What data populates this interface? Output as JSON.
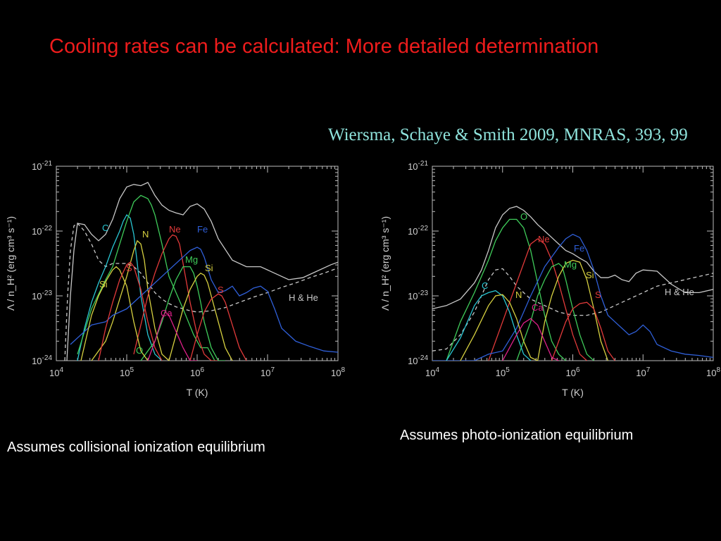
{
  "title": "Cooling rates can be calculated: More detailed determination",
  "citation": "Wiersma, Schaye & Smith 2009, MNRAS, 393, 99",
  "captions": {
    "left": "Assumes collisional ionization equilibrium",
    "right": "Assumes photo-ionization equilibrium"
  },
  "colors": {
    "total": "#c8c8c8",
    "hhe": "#c8c8c8",
    "O": "#3fcb5a",
    "C": "#29c6d3",
    "N": "#d6d040",
    "Ne": "#e23a3a",
    "Fe": "#2f5fd8",
    "Mg": "#3fcb5a",
    "Si": "#d6d040",
    "S": "#e23a3a",
    "Ca": "#e0208a"
  },
  "chart_data": [
    {
      "type": "line",
      "xlabel": "T (K)",
      "ylabel": "Λ / n_H² (erg cm³ s⁻¹)",
      "xscale": "log",
      "yscale": "log",
      "xlim": [
        10000,
        100000000
      ],
      "ylim": [
        1e-24,
        1e-21
      ],
      "xticks": [
        "10^4",
        "10^5",
        "10^6",
        "10^7",
        "10^8"
      ],
      "yticks": [
        "10^-24",
        "10^-23",
        "10^-22",
        "10^-21"
      ],
      "curve_labels": [
        "O",
        "C",
        "N",
        "Ne",
        "Fe",
        "Mg",
        "Si",
        "Si",
        "S",
        "S",
        "Ca",
        "H & He"
      ],
      "series": [
        {
          "key": "total",
          "style": "solid",
          "logT": [
            4.15,
            4.2,
            4.25,
            4.3,
            4.4,
            4.5,
            4.6,
            4.7,
            4.8,
            4.9,
            5.0,
            5.1,
            5.2,
            5.3,
            5.4,
            5.5,
            5.6,
            5.7,
            5.8,
            5.9,
            6.0,
            6.1,
            6.2,
            6.3,
            6.5,
            6.7,
            6.9,
            7.1,
            7.3,
            7.5,
            7.7,
            7.9,
            8.0
          ],
          "logL": [
            -24.0,
            -23.0,
            -22.3,
            -21.88,
            -21.9,
            -22.05,
            -22.15,
            -22.05,
            -21.82,
            -21.5,
            -21.32,
            -21.28,
            -21.3,
            -21.25,
            -21.45,
            -21.6,
            -21.68,
            -21.72,
            -21.75,
            -21.62,
            -21.58,
            -21.66,
            -21.85,
            -22.12,
            -22.45,
            -22.55,
            -22.55,
            -22.65,
            -22.75,
            -22.72,
            -22.62,
            -22.52,
            -22.48
          ]
        },
        {
          "key": "hhe",
          "style": "dashed",
          "logT": [
            4.12,
            4.16,
            4.2,
            4.25,
            4.3,
            4.4,
            4.5,
            4.6,
            4.7,
            4.8,
            4.9,
            5.0,
            5.1,
            5.2,
            5.3,
            5.4,
            5.5,
            5.6,
            5.7,
            5.8,
            5.9,
            6.0,
            6.2,
            6.4,
            6.6,
            6.8,
            7.0,
            7.2,
            7.4,
            7.6,
            7.8,
            8.0
          ],
          "logL": [
            -24.0,
            -23.0,
            -22.3,
            -21.92,
            -21.88,
            -22.0,
            -22.2,
            -22.45,
            -22.55,
            -22.5,
            -22.5,
            -22.5,
            -22.55,
            -22.65,
            -22.8,
            -22.95,
            -23.05,
            -23.12,
            -23.17,
            -23.2,
            -23.23,
            -23.25,
            -23.23,
            -23.18,
            -23.1,
            -23.02,
            -22.95,
            -22.87,
            -22.8,
            -22.72,
            -22.65,
            -22.57
          ]
        },
        {
          "key": "C",
          "style": "solid",
          "logT": [
            4.3,
            4.4,
            4.5,
            4.6,
            4.7,
            4.8,
            4.9,
            4.95,
            5.0,
            5.05,
            5.1,
            5.15,
            5.2,
            5.3,
            5.4,
            5.5
          ],
          "logL": [
            -24.0,
            -23.5,
            -23.1,
            -22.8,
            -22.55,
            -22.25,
            -22.0,
            -21.85,
            -21.75,
            -21.8,
            -22.05,
            -22.5,
            -23.0,
            -23.6,
            -23.9,
            -24.0
          ]
        },
        {
          "key": "O",
          "style": "solid",
          "logT": [
            4.3,
            4.5,
            4.7,
            4.8,
            4.9,
            5.0,
            5.1,
            5.2,
            5.3,
            5.35,
            5.4,
            5.5,
            5.6,
            5.8,
            5.95,
            6.05,
            6.15,
            6.25
          ],
          "logL": [
            -23.9,
            -23.2,
            -22.75,
            -22.55,
            -22.2,
            -21.85,
            -21.55,
            -21.45,
            -21.5,
            -21.6,
            -21.75,
            -22.2,
            -22.7,
            -23.2,
            -23.6,
            -23.8,
            -23.8,
            -24.0
          ]
        },
        {
          "key": "N",
          "style": "solid",
          "logT": [
            4.5,
            4.7,
            4.8,
            4.9,
            5.0,
            5.1,
            5.15,
            5.2,
            5.25,
            5.3,
            5.4,
            5.5,
            5.6
          ],
          "logL": [
            -24.0,
            -23.7,
            -23.4,
            -23.05,
            -22.7,
            -22.3,
            -22.15,
            -22.2,
            -22.45,
            -22.9,
            -23.5,
            -23.9,
            -24.0
          ]
        },
        {
          "key": "Ne",
          "style": "solid",
          "logT": [
            5.1,
            5.2,
            5.3,
            5.4,
            5.5,
            5.6,
            5.65,
            5.7,
            5.75,
            5.8,
            5.9,
            6.0,
            6.1,
            6.2,
            6.3
          ],
          "logL": [
            -23.9,
            -23.45,
            -23.0,
            -22.65,
            -22.35,
            -22.12,
            -22.06,
            -22.08,
            -22.2,
            -22.5,
            -23.1,
            -23.6,
            -23.9,
            -24.0,
            -24.0
          ]
        },
        {
          "key": "Fe",
          "style": "solid",
          "logT": [
            4.2,
            4.5,
            4.7,
            4.8,
            5.0,
            5.2,
            5.4,
            5.6,
            5.8,
            5.9,
            6.0,
            6.05,
            6.1,
            6.2,
            6.3,
            6.4,
            6.5,
            6.6,
            6.7,
            6.8,
            6.9,
            7.0,
            7.1,
            7.2,
            7.4,
            7.6,
            7.8,
            8.0
          ],
          "logL": [
            -23.75,
            -23.45,
            -23.4,
            -23.3,
            -23.2,
            -23.0,
            -22.8,
            -22.6,
            -22.4,
            -22.3,
            -22.25,
            -22.28,
            -22.4,
            -22.75,
            -22.95,
            -22.92,
            -22.85,
            -23.0,
            -22.95,
            -22.88,
            -22.85,
            -22.93,
            -23.2,
            -23.5,
            -23.7,
            -23.78,
            -23.85,
            -23.87
          ]
        },
        {
          "key": "Mg",
          "style": "solid",
          "logT": [
            5.2,
            5.4,
            5.5,
            5.6,
            5.7,
            5.8,
            5.9,
            5.95,
            6.0,
            6.05,
            6.1,
            6.2,
            6.3,
            6.4
          ],
          "logL": [
            -24.0,
            -23.7,
            -23.4,
            -23.05,
            -22.75,
            -22.55,
            -22.55,
            -22.65,
            -22.85,
            -23.1,
            -23.4,
            -23.8,
            -24.0,
            -24.0
          ]
        },
        {
          "key": "Si",
          "style": "solid",
          "logT": [
            4.35,
            4.5,
            4.6,
            4.7,
            4.8,
            4.85,
            4.9,
            5.0,
            5.1,
            5.2,
            5.3
          ],
          "logL": [
            -24.0,
            -23.3,
            -23.0,
            -22.78,
            -22.6,
            -22.55,
            -22.6,
            -22.85,
            -23.4,
            -23.85,
            -24.0
          ]
        },
        {
          "key": "Si",
          "style": "solid",
          "logT": [
            5.6,
            5.7,
            5.8,
            5.9,
            6.0,
            6.05,
            6.1,
            6.15,
            6.2,
            6.3,
            6.4,
            6.5
          ],
          "logL": [
            -24.0,
            -23.6,
            -23.2,
            -22.9,
            -22.7,
            -22.65,
            -22.68,
            -22.8,
            -23.0,
            -23.4,
            -23.8,
            -24.0
          ]
        },
        {
          "key": "S",
          "style": "solid",
          "logT": [
            4.6,
            4.7,
            4.8,
            4.9,
            5.0,
            5.05,
            5.1,
            5.2,
            5.3,
            5.4,
            5.5
          ],
          "logL": [
            -24.0,
            -23.5,
            -23.1,
            -22.75,
            -22.52,
            -22.48,
            -22.55,
            -22.9,
            -23.4,
            -23.8,
            -24.0
          ]
        },
        {
          "key": "S",
          "style": "solid",
          "logT": [
            5.9,
            6.0,
            6.1,
            6.2,
            6.3,
            6.35,
            6.4,
            6.5,
            6.6,
            6.7
          ],
          "logL": [
            -24.0,
            -23.6,
            -23.25,
            -23.05,
            -22.97,
            -23.0,
            -23.1,
            -23.45,
            -23.8,
            -24.0
          ]
        },
        {
          "key": "Ca",
          "style": "solid",
          "logT": [
            5.3,
            5.4,
            5.5,
            5.55,
            5.6,
            5.7,
            5.8,
            5.9,
            6.0
          ],
          "logL": [
            -24.0,
            -23.7,
            -23.35,
            -23.25,
            -23.3,
            -23.55,
            -23.8,
            -24.0,
            -24.0
          ]
        }
      ]
    },
    {
      "type": "line",
      "xlabel": "T (K)",
      "ylabel": "Λ / n_H² (erg cm³ s⁻¹)",
      "xscale": "log",
      "yscale": "log",
      "xlim": [
        10000,
        100000000
      ],
      "ylim": [
        1e-24,
        1e-21
      ],
      "xticks": [
        "10^4",
        "10^5",
        "10^6",
        "10^7",
        "10^8"
      ],
      "yticks": [
        "10^-24",
        "10^-23",
        "10^-22",
        "10^-21"
      ],
      "curve_labels": [
        "O",
        "Ne",
        "Fe",
        "Mg",
        "Si",
        "S",
        "C",
        "N",
        "Ca",
        "H & He"
      ],
      "series": [
        {
          "key": "total",
          "style": "solid",
          "logT": [
            4.0,
            4.2,
            4.4,
            4.6,
            4.7,
            4.8,
            4.9,
            5.0,
            5.1,
            5.2,
            5.3,
            5.4,
            5.5,
            5.6,
            5.7,
            5.8,
            5.9,
            6.0,
            6.1,
            6.2,
            6.3,
            6.4,
            6.5,
            6.6,
            6.7,
            6.8,
            6.9,
            7.0,
            7.2,
            7.4,
            7.6,
            7.8,
            8.0
          ],
          "logL": [
            -23.2,
            -23.15,
            -23.05,
            -22.8,
            -22.6,
            -22.3,
            -21.95,
            -21.75,
            -21.65,
            -21.62,
            -21.68,
            -21.78,
            -21.9,
            -22.0,
            -22.1,
            -22.2,
            -22.3,
            -22.35,
            -22.42,
            -22.48,
            -22.62,
            -22.72,
            -22.72,
            -22.68,
            -22.75,
            -22.78,
            -22.65,
            -22.6,
            -22.62,
            -22.82,
            -22.95,
            -22.95,
            -22.9
          ]
        },
        {
          "key": "hhe",
          "style": "dashed",
          "logT": [
            4.0,
            4.2,
            4.4,
            4.6,
            4.7,
            4.8,
            4.9,
            5.0,
            5.1,
            5.2,
            5.3,
            5.4,
            5.5,
            5.6,
            5.7,
            5.8,
            6.0,
            6.2,
            6.4,
            6.6,
            6.8,
            7.0,
            7.2,
            7.4,
            7.6,
            7.8,
            8.0
          ],
          "logL": [
            -23.85,
            -23.82,
            -23.6,
            -23.25,
            -23.0,
            -22.75,
            -22.6,
            -22.58,
            -22.7,
            -22.85,
            -22.95,
            -23.05,
            -23.1,
            -23.15,
            -23.2,
            -23.25,
            -23.3,
            -23.3,
            -23.25,
            -23.15,
            -23.05,
            -22.95,
            -22.85,
            -22.8,
            -22.75,
            -22.7,
            -22.65
          ]
        },
        {
          "key": "O",
          "style": "solid",
          "logT": [
            4.2,
            4.4,
            4.6,
            4.8,
            4.9,
            5.0,
            5.1,
            5.2,
            5.3,
            5.4,
            5.5,
            5.6,
            5.7,
            5.8,
            5.9
          ],
          "logL": [
            -24.0,
            -23.4,
            -22.95,
            -22.45,
            -22.15,
            -21.95,
            -21.82,
            -21.82,
            -21.95,
            -22.3,
            -22.8,
            -23.3,
            -23.7,
            -23.9,
            -24.0
          ]
        },
        {
          "key": "Ne",
          "style": "solid",
          "logT": [
            4.8,
            5.0,
            5.2,
            5.4,
            5.5,
            5.6,
            5.7,
            5.8,
            5.9,
            6.0,
            6.1,
            6.2
          ],
          "logL": [
            -24.0,
            -23.4,
            -22.8,
            -22.2,
            -22.12,
            -22.2,
            -22.45,
            -22.8,
            -23.2,
            -23.6,
            -23.9,
            -24.0
          ]
        },
        {
          "key": "Fe",
          "style": "solid",
          "logT": [
            4.0,
            4.2,
            4.4,
            4.6,
            4.8,
            5.0,
            5.2,
            5.4,
            5.6,
            5.8,
            5.9,
            6.0,
            6.1,
            6.2,
            6.3,
            6.4,
            6.5,
            6.6,
            6.7,
            6.8,
            6.9,
            7.0,
            7.1,
            7.2,
            7.4,
            7.6,
            7.8,
            8.0
          ],
          "logL": [
            -24.0,
            -24.0,
            -24.0,
            -24.0,
            -23.9,
            -23.85,
            -23.5,
            -23.0,
            -22.55,
            -22.25,
            -22.12,
            -22.05,
            -22.1,
            -22.3,
            -22.6,
            -23.0,
            -23.3,
            -23.4,
            -23.5,
            -23.6,
            -23.55,
            -23.45,
            -23.55,
            -23.75,
            -23.85,
            -23.9,
            -23.92,
            -23.95
          ]
        },
        {
          "key": "Mg",
          "style": "solid",
          "logT": [
            5.2,
            5.4,
            5.5,
            5.6,
            5.7,
            5.8,
            5.85,
            5.9,
            6.0,
            6.1,
            6.2,
            6.3
          ],
          "logL": [
            -24.0,
            -23.4,
            -23.0,
            -22.75,
            -22.55,
            -22.5,
            -22.55,
            -22.75,
            -23.2,
            -23.6,
            -23.9,
            -24.0
          ]
        },
        {
          "key": "Si",
          "style": "solid",
          "logT": [
            5.5,
            5.6,
            5.7,
            5.8,
            5.9,
            6.0,
            6.1,
            6.2,
            6.3,
            6.4,
            6.5
          ],
          "logL": [
            -24.0,
            -23.4,
            -23.0,
            -22.7,
            -22.5,
            -22.45,
            -22.48,
            -22.75,
            -23.2,
            -23.7,
            -24.0
          ]
        },
        {
          "key": "S",
          "style": "solid",
          "logT": [
            5.7,
            5.8,
            5.9,
            6.0,
            6.1,
            6.2,
            6.3,
            6.4,
            6.5,
            6.6
          ],
          "logL": [
            -24.0,
            -23.7,
            -23.4,
            -23.2,
            -23.12,
            -23.1,
            -23.2,
            -23.5,
            -23.85,
            -24.0
          ]
        },
        {
          "key": "C",
          "style": "solid",
          "logT": [
            4.2,
            4.4,
            4.5,
            4.6,
            4.7,
            4.8,
            4.9,
            5.0,
            5.1,
            5.2,
            5.3,
            5.4
          ],
          "logL": [
            -24.0,
            -23.65,
            -23.4,
            -23.15,
            -23.0,
            -22.95,
            -22.92,
            -23.0,
            -23.25,
            -23.6,
            -23.9,
            -24.0
          ]
        },
        {
          "key": "N",
          "style": "solid",
          "logT": [
            4.4,
            4.6,
            4.8,
            4.9,
            5.0,
            5.1,
            5.2,
            5.3,
            5.4,
            5.5
          ],
          "logL": [
            -24.0,
            -23.6,
            -23.15,
            -23.0,
            -22.98,
            -23.1,
            -23.35,
            -23.7,
            -23.95,
            -24.0
          ]
        },
        {
          "key": "Ca",
          "style": "solid",
          "logT": [
            5.0,
            5.2,
            5.3,
            5.4,
            5.5,
            5.6,
            5.7,
            5.8
          ],
          "logL": [
            -24.0,
            -23.6,
            -23.42,
            -23.35,
            -23.45,
            -23.7,
            -23.95,
            -24.0
          ]
        }
      ]
    }
  ]
}
